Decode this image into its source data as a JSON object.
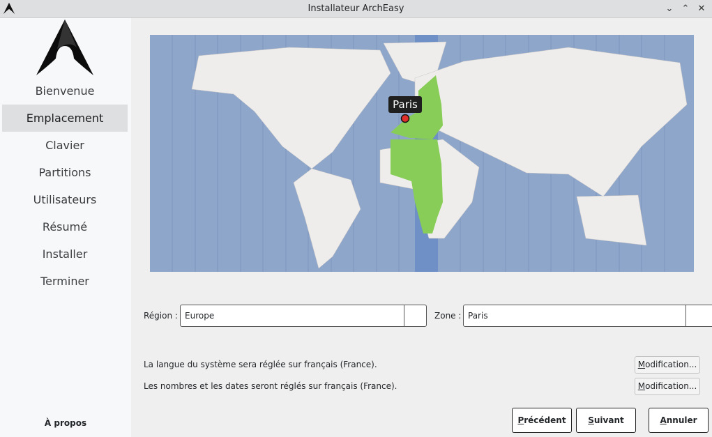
{
  "window": {
    "title": "Installateur ArchEasy",
    "icons": [
      "minimize-icon",
      "maximize-icon",
      "close-icon"
    ]
  },
  "sidebar": {
    "items": [
      {
        "label": "Bienvenue",
        "active": false
      },
      {
        "label": "Emplacement",
        "active": true
      },
      {
        "label": "Clavier",
        "active": false
      },
      {
        "label": "Partitions",
        "active": false
      },
      {
        "label": "Utilisateurs",
        "active": false
      },
      {
        "label": "Résumé",
        "active": false
      },
      {
        "label": "Installer",
        "active": false
      },
      {
        "label": "Terminer",
        "active": false
      }
    ],
    "about": "À propos"
  },
  "map": {
    "selected_city": "Paris",
    "colors": {
      "ocean": "#8fa6cb",
      "land": "#efedeb",
      "zone": "#87cd57",
      "band": "#6f8fc7",
      "pin": "#e0302c"
    }
  },
  "location": {
    "region_label": "Région :",
    "region_value": "Europe",
    "zone_label": "Zone :",
    "zone_value": "Paris"
  },
  "locale": {
    "language_text": "La langue du système sera réglée sur français (France).",
    "numbers_text": "Les nombres et les dates seront réglés sur français (France).",
    "change_label_mnemonic": "M",
    "change_label_rest": "odification..."
  },
  "buttons": {
    "back": {
      "m": "P",
      "rest": "récédent"
    },
    "next": {
      "m": "S",
      "rest": "uivant"
    },
    "cancel": {
      "m": "A",
      "rest": "nnuler"
    }
  }
}
